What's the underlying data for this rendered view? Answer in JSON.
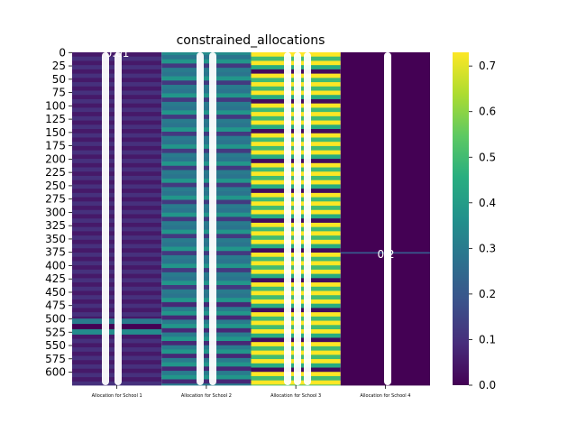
{
  "chart_data": {
    "type": "heatmap",
    "title": "constrained_allocations",
    "columns": [
      "Allocation for School 1",
      "Allocation for School 2",
      "Allocation for School 3",
      "Allocation for School 4"
    ],
    "y_ticks": [
      "0",
      "25",
      "50",
      "75",
      "100",
      "125",
      "150",
      "175",
      "200",
      "225",
      "250",
      "275",
      "300",
      "325",
      "350",
      "375",
      "400",
      "425",
      "450",
      "475",
      "500",
      "525",
      "550",
      "575",
      "600"
    ],
    "n_rows": 625,
    "colormap": "viridis",
    "value_range": [
      0.0,
      0.73
    ],
    "colorbar_ticks": [
      "0.0",
      "0.1",
      "0.2",
      "0.3",
      "0.4",
      "0.5",
      "0.6",
      "0.7"
    ],
    "colorbar_values": [
      0.0,
      0.1,
      0.2,
      0.3,
      0.4,
      0.5,
      0.6,
      0.7
    ],
    "visible_annotations": [
      "0.01",
      "0.2"
    ],
    "column_segments": [
      [
        {
          "from": 0,
          "to": 500,
          "pattern": [
            0.05,
            0.1
          ]
        },
        {
          "from": 500,
          "to": 510,
          "value": 0.3
        },
        {
          "from": 510,
          "to": 520,
          "value": 0.0
        },
        {
          "from": 520,
          "to": 530,
          "value": 0.35
        },
        {
          "from": 530,
          "to": 625,
          "pattern": [
            0.05,
            0.1
          ]
        }
      ],
      [
        {
          "from": 0,
          "to": 5,
          "value": 0.35
        },
        {
          "from": 5,
          "to": 470,
          "pattern": [
            0.28,
            0.38,
            0.12,
            0.3
          ]
        },
        {
          "from": 470,
          "to": 625,
          "pattern": [
            0.08,
            0.3,
            0.38
          ]
        }
      ],
      [
        {
          "from": 0,
          "to": 625,
          "pattern": [
            0.73,
            0.5,
            0.73,
            0.45,
            0.02,
            0.73,
            0.5
          ]
        }
      ],
      [
        {
          "from": 0,
          "to": 375,
          "value": 0.0
        },
        {
          "from": 375,
          "to": 378,
          "value": 0.2
        },
        {
          "from": 378,
          "to": 625,
          "value": 0.0
        }
      ]
    ]
  }
}
